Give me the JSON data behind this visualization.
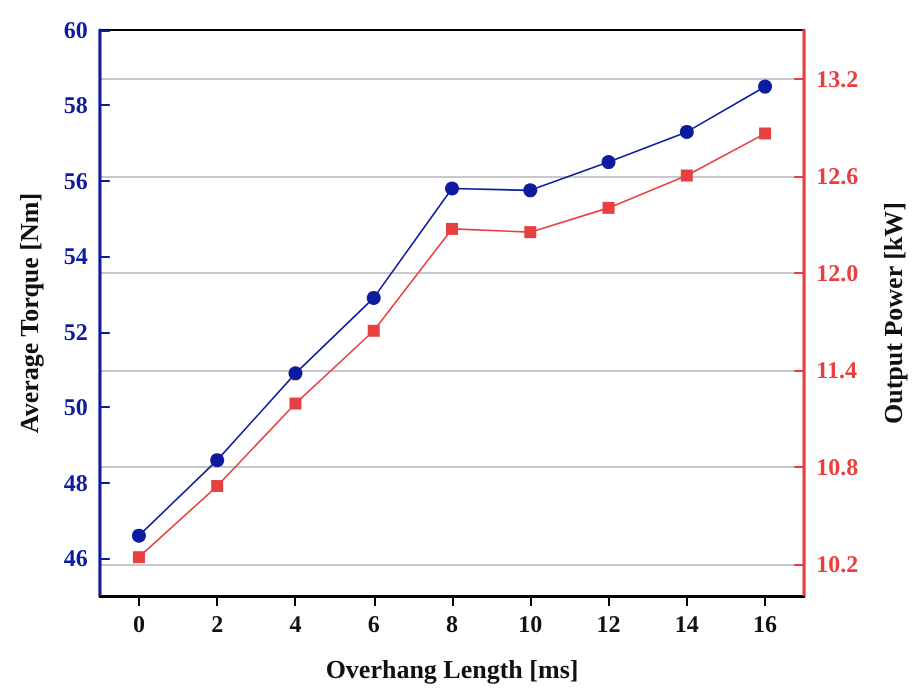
{
  "chart_data": {
    "type": "line",
    "xlabel": "Overhang Length [ms]",
    "ylabel": "Average Torque [Nm]",
    "y2label": "Output Power [kW]",
    "x": [
      0,
      2,
      4,
      6,
      8,
      10,
      12,
      14,
      16
    ],
    "series": [
      {
        "color": "#0d1b9e",
        "marker": "circle",
        "values": [
          46.6,
          48.6,
          50.9,
          52.9,
          55.8,
          55.75,
          56.5,
          57.3,
          58.5
        ]
      },
      {
        "color": "#e84040",
        "marker": "square",
        "axis": "y2",
        "values": [
          10.24,
          10.68,
          11.19,
          11.64,
          12.27,
          12.25,
          12.4,
          12.6,
          12.86
        ]
      }
    ],
    "xlim": [
      -1,
      17
    ],
    "xticks": [
      0,
      2,
      4,
      6,
      8,
      10,
      12,
      14,
      16
    ],
    "ylim": [
      45,
      60
    ],
    "yticks": [
      46,
      48,
      50,
      52,
      54,
      56,
      58,
      60
    ],
    "y2lim": [
      10.0,
      13.5
    ],
    "y2ticks": [
      10.2,
      10.8,
      11.4,
      {
        "value": 12.0,
        "label": "12.0"
      },
      12.6,
      13.2
    ],
    "grid": "y2"
  }
}
